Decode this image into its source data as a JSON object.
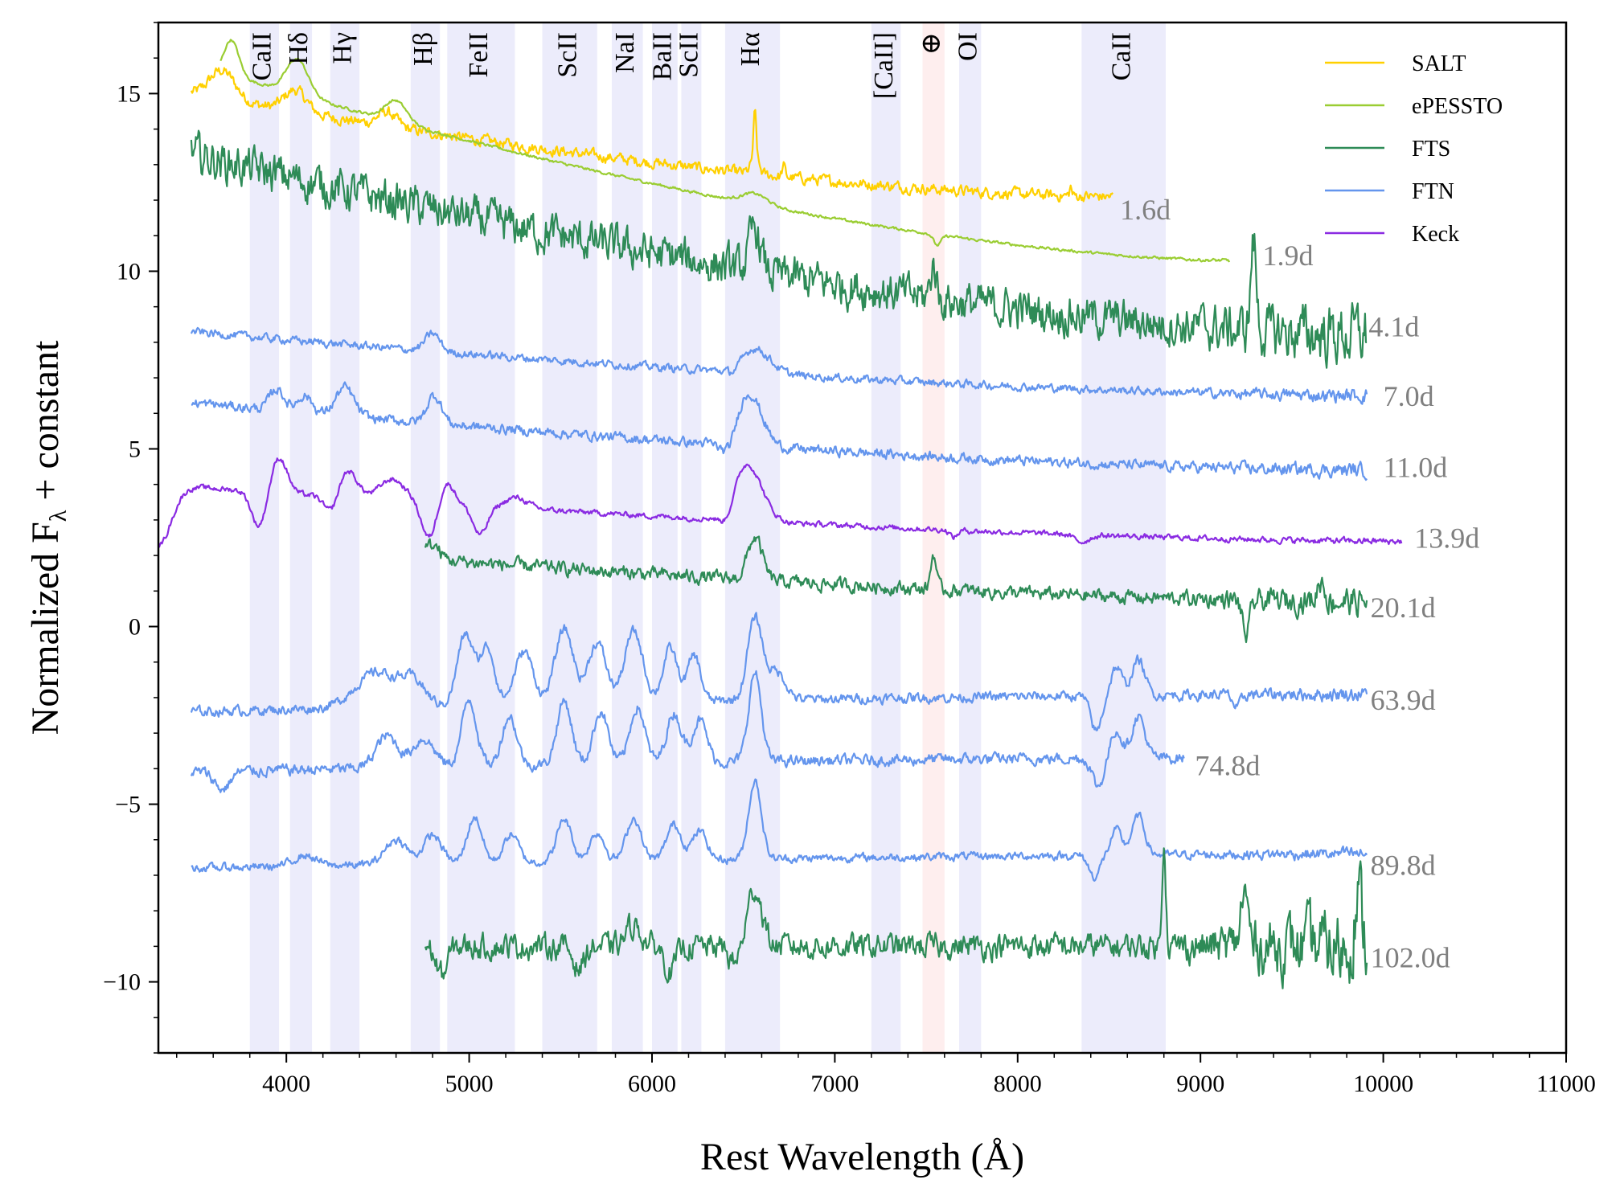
{
  "chart_data": {
    "type": "line",
    "xlabel": "Rest Wavelength (Å)",
    "ylabel_main": "Normalized F",
    "ylabel_sub": "λ",
    "ylabel_tail": " + constant",
    "xlim": [
      3300,
      11000
    ],
    "ylim": [
      -12,
      17
    ],
    "x_ticks": [
      4000,
      5000,
      6000,
      7000,
      8000,
      9000,
      10000,
      11000
    ],
    "x_tick_labels": [
      "4000",
      "5000",
      "6000",
      "7000",
      "8000",
      "9000",
      "10000",
      "11000"
    ],
    "y_ticks": [
      -10,
      -5,
      0,
      5,
      10,
      15
    ],
    "y_tick_labels": [
      "−10",
      "−5",
      "0",
      "5",
      "10",
      "15"
    ],
    "legend_position": "top-right",
    "legend": [
      {
        "name": "SALT",
        "color": "#ffd000"
      },
      {
        "name": "ePESSTO",
        "color": "#9acd32"
      },
      {
        "name": "FTS",
        "color": "#2e8b57"
      },
      {
        "name": "FTN",
        "color": "#6495ed"
      },
      {
        "name": "Keck",
        "color": "#8a2be2"
      }
    ],
    "line_bands": [
      {
        "label": "CaII",
        "lo": 3800,
        "hi": 3960,
        "color": "#e6e6fa"
      },
      {
        "label": "Hδ",
        "lo": 4020,
        "hi": 4140,
        "color": "#e6e6fa"
      },
      {
        "label": "Hγ",
        "lo": 4240,
        "hi": 4400,
        "color": "#e6e6fa"
      },
      {
        "label": "Hβ",
        "lo": 4680,
        "hi": 4840,
        "color": "#e6e6fa"
      },
      {
        "label": "FeII",
        "lo": 4880,
        "hi": 5250,
        "color": "#e6e6fa"
      },
      {
        "label": "ScII",
        "lo": 5400,
        "hi": 5700,
        "color": "#e6e6fa"
      },
      {
        "label": "NaI",
        "lo": 5780,
        "hi": 5950,
        "color": "#e6e6fa"
      },
      {
        "label": "BaII",
        "lo": 6000,
        "hi": 6140,
        "color": "#e6e6fa"
      },
      {
        "label": "ScII",
        "lo": 6160,
        "hi": 6270,
        "color": "#e6e6fa"
      },
      {
        "label": "Hα",
        "lo": 6400,
        "hi": 6700,
        "color": "#e6e6fa"
      },
      {
        "label": "[CaII]",
        "lo": 7200,
        "hi": 7360,
        "color": "#e6e6fa"
      },
      {
        "label": "⊕",
        "lo": 7480,
        "hi": 7600,
        "color": "#fde8e8"
      },
      {
        "label": "OI",
        "lo": 7680,
        "hi": 7800,
        "color": "#e6e6fa"
      },
      {
        "label": "CaII",
        "lo": 8350,
        "hi": 8810,
        "color": "#e6e6fa"
      }
    ],
    "series": [
      {
        "name": "SALT",
        "epoch": "1.6d",
        "color": "#ffd000",
        "x_start": 3480,
        "x_end": 8520,
        "start": 15.0,
        "end": 12.1,
        "noise": 0.25,
        "noise_red": 0.05,
        "features": [
          [
            3650,
            0.8,
            70
          ],
          [
            4050,
            0.6,
            60
          ],
          [
            4550,
            0.4,
            50
          ],
          [
            6563,
            1.3,
            8
          ],
          [
            6563,
            0.4,
            22
          ],
          [
            6720,
            0.3,
            8
          ],
          [
            8290,
            0.25,
            6
          ]
        ],
        "label_x": 8560,
        "label_y": 11.65
      },
      {
        "name": "ePESSTO",
        "epoch": "1.9d",
        "color": "#9acd32",
        "x_start": 3640,
        "x_end": 9160,
        "start": 15.6,
        "end": 10.3,
        "noise": 0.06,
        "noise_red": 0.06,
        "features": [
          [
            3700,
            1.0,
            40
          ],
          [
            4060,
            1.0,
            60
          ],
          [
            4600,
            0.6,
            60
          ],
          [
            6563,
            0.3,
            70
          ],
          [
            7560,
            -0.3,
            20
          ]
        ],
        "label_x": 9340,
        "label_y": 10.35
      },
      {
        "name": "FTS",
        "epoch": "4.1d",
        "color": "#2e8b57",
        "x_start": 3480,
        "x_end": 9910,
        "start": 13.3,
        "end": 8.2,
        "noise": 0.9,
        "noise_red": 0.55,
        "features": [
          [
            6563,
            1.2,
            30
          ],
          [
            7540,
            1.0,
            15
          ],
          [
            9290,
            2.5,
            15
          ]
        ],
        "label_x": 9920,
        "label_y": 8.35
      },
      {
        "name": "FTN",
        "epoch": "7.0d",
        "color": "#6495ed",
        "x_start": 3480,
        "x_end": 9910,
        "start": 8.3,
        "end": 6.5,
        "noise": 0.18,
        "noise_red": 0.15,
        "features": [
          [
            4800,
            0.5,
            40
          ],
          [
            6563,
            0.7,
            80
          ],
          [
            6450,
            -0.2,
            40
          ]
        ],
        "label_x": 10000,
        "label_y": 6.4
      },
      {
        "name": "FTN",
        "epoch": "11.0d",
        "color": "#6495ed",
        "x_start": 3480,
        "x_end": 9910,
        "start": 6.3,
        "end": 4.4,
        "noise": 0.22,
        "noise_red": 0.12,
        "features": [
          [
            3950,
            0.6,
            40
          ],
          [
            4100,
            0.5,
            40
          ],
          [
            4320,
            0.8,
            50
          ],
          [
            4810,
            0.8,
            40
          ],
          [
            6530,
            1.5,
            70
          ],
          [
            6420,
            -0.5,
            40
          ]
        ],
        "label_x": 10000,
        "label_y": 4.4
      },
      {
        "name": "Keck",
        "epoch": "13.9d",
        "color": "#8a2be2",
        "x_start": 3300,
        "x_end": 10100,
        "start": 4.0,
        "end": 2.4,
        "noise": 0.12,
        "noise_red": 0.03,
        "features": [
          [
            3300,
            -1.7,
            70
          ],
          [
            3960,
            1.0,
            45
          ],
          [
            3850,
            -1.0,
            40
          ],
          [
            4330,
            0.8,
            55
          ],
          [
            4250,
            -0.6,
            40
          ],
          [
            4580,
            0.6,
            70
          ],
          [
            4780,
            -1.0,
            40
          ],
          [
            4880,
            0.6,
            40
          ],
          [
            5060,
            -0.8,
            40
          ],
          [
            5260,
            0.3,
            60
          ],
          [
            6520,
            1.6,
            80
          ],
          [
            6410,
            -0.5,
            40
          ],
          [
            7650,
            -0.2,
            20
          ],
          [
            8350,
            -0.2,
            40
          ]
        ],
        "label_x": 10170,
        "label_y": 2.4
      },
      {
        "name": "FTS",
        "epoch": "20.1d",
        "color": "#2e8b57",
        "x_start": 4760,
        "x_end": 9910,
        "start": 1.9,
        "end": 0.7,
        "noise": 0.3,
        "noise_red": 0.4,
        "features": [
          [
            4800,
            0.4,
            40
          ],
          [
            6563,
            1.2,
            40
          ],
          [
            7540,
            1.0,
            15
          ],
          [
            9250,
            -1.0,
            20
          ],
          [
            9660,
            0.6,
            20
          ]
        ],
        "label_x": 9930,
        "label_y": 0.45
      },
      {
        "name": "FTN",
        "epoch": "63.9d",
        "color": "#6495ed",
        "x_start": 3480,
        "x_end": 9910,
        "start": -2.4,
        "end": -1.9,
        "noise": 0.22,
        "noise_red": 0.12,
        "features": [
          [
            4500,
            1.0,
            120
          ],
          [
            4700,
            0.6,
            60
          ],
          [
            4980,
            2.0,
            45
          ],
          [
            5100,
            1.6,
            40
          ],
          [
            5300,
            1.5,
            50
          ],
          [
            5520,
            2.1,
            50
          ],
          [
            5700,
            1.7,
            50
          ],
          [
            5900,
            2.0,
            50
          ],
          [
            6100,
            1.5,
            40
          ],
          [
            6230,
            1.3,
            35
          ],
          [
            6563,
            2.3,
            40
          ],
          [
            6680,
            0.8,
            50
          ],
          [
            8430,
            -1.0,
            30
          ],
          [
            8540,
            0.8,
            30
          ],
          [
            8660,
            1.0,
            35
          ],
          [
            9200,
            -0.4,
            20
          ]
        ],
        "label_x": 9930,
        "label_y": -2.15
      },
      {
        "name": "FTN",
        "epoch": "74.8d",
        "color": "#6495ed",
        "x_start": 3480,
        "x_end": 8910,
        "start": -4.1,
        "end": -3.7,
        "noise": 0.25,
        "noise_red": 0.12,
        "features": [
          [
            3650,
            -0.5,
            40
          ],
          [
            4550,
            0.9,
            60
          ],
          [
            4750,
            0.8,
            60
          ],
          [
            5000,
            1.9,
            40
          ],
          [
            5220,
            1.4,
            40
          ],
          [
            5520,
            1.8,
            40
          ],
          [
            5720,
            1.5,
            40
          ],
          [
            5920,
            1.6,
            40
          ],
          [
            6120,
            1.4,
            40
          ],
          [
            6260,
            1.2,
            40
          ],
          [
            6563,
            2.5,
            35
          ],
          [
            8440,
            -0.8,
            30
          ],
          [
            8540,
            0.8,
            30
          ],
          [
            8660,
            1.2,
            35
          ]
        ],
        "label_x": 8970,
        "label_y": -4.0
      },
      {
        "name": "FTN",
        "epoch": "89.8d",
        "color": "#6495ed",
        "x_start": 3480,
        "x_end": 9910,
        "start": -6.8,
        "end": -6.4,
        "noise": 0.18,
        "noise_red": 0.12,
        "features": [
          [
            4100,
            0.3,
            60
          ],
          [
            4600,
            0.7,
            60
          ],
          [
            4800,
            0.8,
            50
          ],
          [
            5030,
            1.3,
            40
          ],
          [
            5230,
            0.8,
            40
          ],
          [
            5520,
            1.2,
            40
          ],
          [
            5700,
            0.8,
            40
          ],
          [
            5900,
            1.2,
            40
          ],
          [
            6120,
            1.0,
            40
          ],
          [
            6260,
            0.8,
            40
          ],
          [
            6563,
            2.2,
            35
          ],
          [
            8420,
            -0.6,
            30
          ],
          [
            8540,
            0.7,
            30
          ],
          [
            8660,
            1.1,
            35
          ]
        ],
        "label_x": 9930,
        "label_y": -6.8
      },
      {
        "name": "FTS",
        "epoch": "102.0d",
        "color": "#2e8b57",
        "x_start": 4760,
        "x_end": 9910,
        "start": -9.0,
        "end": -9.0,
        "noise": 0.55,
        "noise_red": 1.4,
        "features": [
          [
            4850,
            -0.8,
            30
          ],
          [
            5600,
            -0.6,
            30
          ],
          [
            5900,
            0.6,
            40
          ],
          [
            6100,
            -0.7,
            30
          ],
          [
            6563,
            1.6,
            40
          ],
          [
            6450,
            -0.5,
            30
          ],
          [
            8800,
            3.0,
            10
          ],
          [
            9240,
            1.5,
            20
          ],
          [
            9860,
            1.5,
            20
          ]
        ],
        "label_x": 9930,
        "label_y": -9.4
      }
    ]
  }
}
